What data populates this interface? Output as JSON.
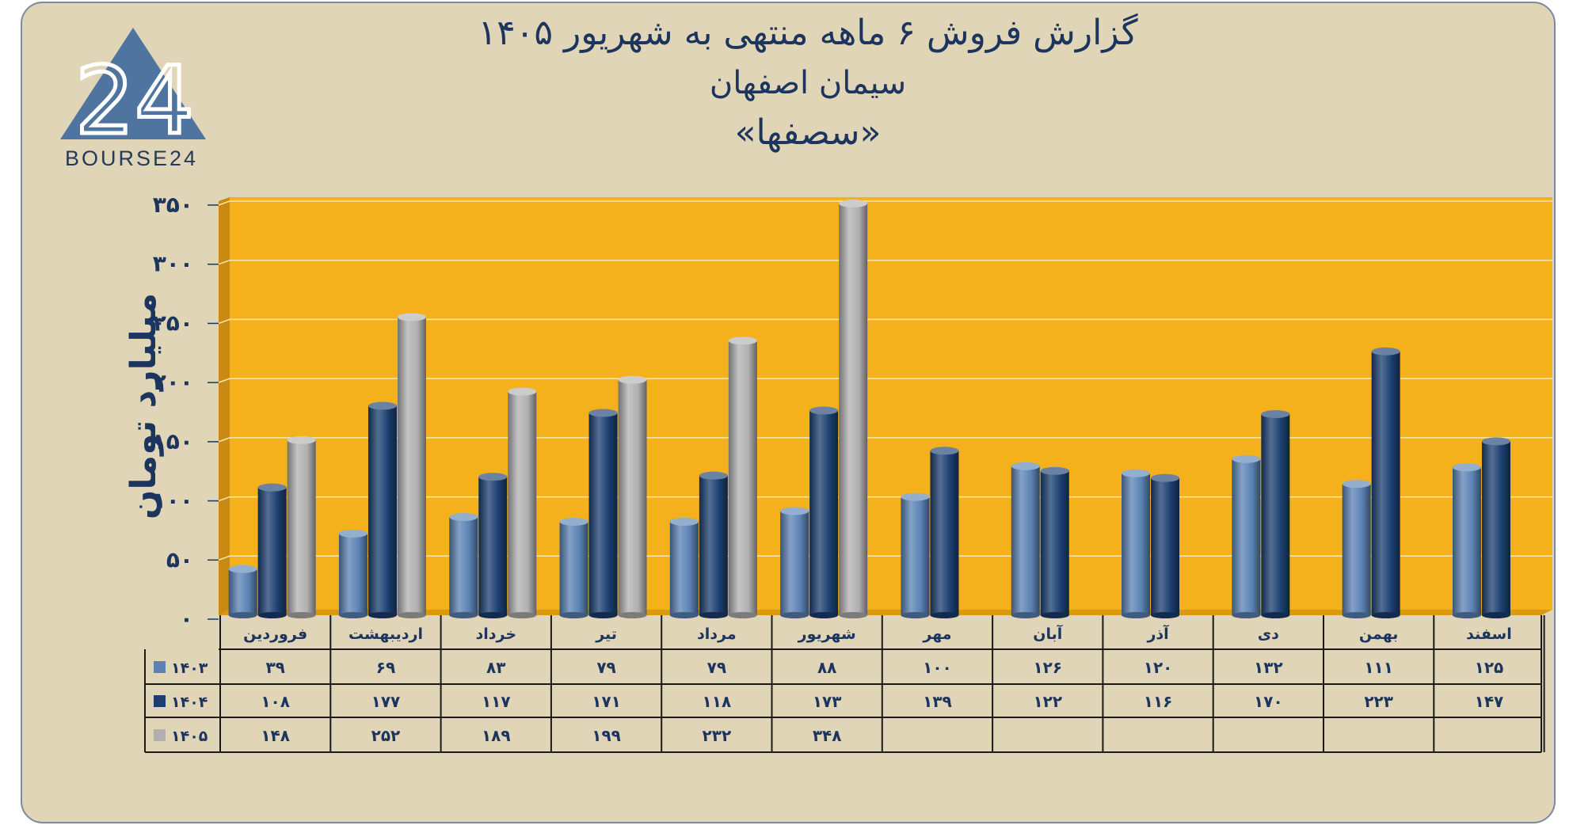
{
  "brand": {
    "name": "BOURSE24",
    "mark": "24",
    "color": "#4f74a0"
  },
  "title_lines": [
    "گزارش  فروش ۶ ماهه منتهی به شهریور ۱۴۰۵",
    "سیمان اصفهان",
    "«سصفها»"
  ],
  "colors": {
    "background": "#e0d5b7",
    "plot_area": "#f5b11c",
    "title": "#1c355e"
  },
  "chart_data": {
    "type": "bar",
    "ylabel": "میلیارد تومان",
    "ylim": [
      0,
      350
    ],
    "yticks": [
      0,
      50,
      100,
      150,
      200,
      250,
      300,
      350
    ],
    "ytick_labels": [
      "۰",
      "۵۰",
      "۱۰۰",
      "۱۵۰",
      "۲۰۰",
      "۲۵۰",
      "۳۰۰",
      "۳۵۰"
    ],
    "grid": true,
    "legend": "data-table",
    "categories": [
      "فروردین",
      "اردیبهشت",
      "خرداد",
      "تیر",
      "مرداد",
      "شهریور",
      "مهر",
      "آبان",
      "آذر",
      "دی",
      "بهمن",
      "اسفند"
    ],
    "series": [
      {
        "name": "۱۴۰۳",
        "color": "#5b82b4",
        "values": [
          39,
          69,
          83,
          79,
          79,
          88,
          100,
          126,
          120,
          132,
          111,
          125
        ],
        "labels": [
          "۳۹",
          "۶۹",
          "۸۳",
          "۷۹",
          "۷۹",
          "۸۸",
          "۱۰۰",
          "۱۲۶",
          "۱۲۰",
          "۱۳۲",
          "۱۱۱",
          "۱۲۵"
        ]
      },
      {
        "name": "۱۴۰۴",
        "color": "#1b3f70",
        "values": [
          108,
          177,
          117,
          171,
          118,
          173,
          139,
          122,
          116,
          170,
          223,
          147
        ],
        "labels": [
          "۱۰۸",
          "۱۷۷",
          "۱۱۷",
          "۱۷۱",
          "۱۱۸",
          "۱۷۳",
          "۱۳۹",
          "۱۲۲",
          "۱۱۶",
          "۱۷۰",
          "۲۲۳",
          "۱۴۷"
        ]
      },
      {
        "name": "۱۴۰۵",
        "color": "#b0b0b0",
        "values": [
          148,
          252,
          189,
          199,
          232,
          348,
          null,
          null,
          null,
          null,
          null,
          null
        ],
        "labels": [
          "۱۴۸",
          "۲۵۲",
          "۱۸۹",
          "۱۹۹",
          "۲۳۲",
          "۳۴۸",
          "",
          "",
          "",
          "",
          "",
          ""
        ]
      }
    ]
  }
}
